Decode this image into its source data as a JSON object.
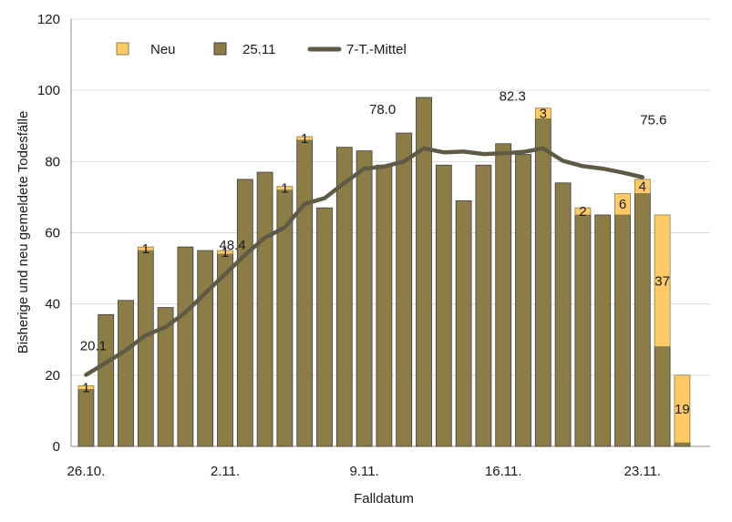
{
  "chart_data": {
    "type": "bar",
    "stacked": true,
    "xlabel": "Falldatum",
    "ylabel": "Bisherige und neu gemeldete Todesfälle",
    "ylim": [
      0,
      120
    ],
    "yticks": [
      0,
      20,
      40,
      60,
      80,
      100,
      120
    ],
    "grid": true,
    "legend_position": "top",
    "colors": {
      "old": "#8B7D45",
      "new": "#FFC966",
      "line": "#5E5A45"
    },
    "x_tick_labels": [
      {
        "index": 0,
        "label": "26.10."
      },
      {
        "index": 7,
        "label": "2.11."
      },
      {
        "index": 14,
        "label": "9.11."
      },
      {
        "index": 21,
        "label": "16.11."
      },
      {
        "index": 28,
        "label": "23.11."
      }
    ],
    "categories": [
      "26.10.",
      "27.10.",
      "28.10.",
      "29.10.",
      "30.10.",
      "31.10.",
      "1.11.",
      "2.11.",
      "3.11.",
      "4.11.",
      "5.11.",
      "6.11.",
      "7.11.",
      "8.11.",
      "9.11.",
      "10.11.",
      "11.11.",
      "12.11.",
      "13.11.",
      "14.11.",
      "15.11.",
      "16.11.",
      "17.11.",
      "18.11.",
      "19.11.",
      "20.11.",
      "21.11.",
      "22.11.",
      "23.11.",
      "24.11.",
      "25.11."
    ],
    "series": [
      {
        "name": "25.11",
        "values": [
          16,
          37,
          41,
          55,
          39,
          56,
          55,
          54,
          75,
          77,
          72,
          86,
          67,
          84,
          83,
          79,
          88,
          98,
          79,
          69,
          79,
          85,
          82,
          92,
          74,
          65,
          65,
          65,
          71,
          28,
          1
        ]
      },
      {
        "name": "Neu",
        "values": [
          1,
          0,
          0,
          1,
          0,
          0,
          0,
          1,
          0,
          0,
          1,
          1,
          0,
          0,
          0,
          0,
          0,
          0,
          0,
          0,
          0,
          0,
          0,
          3,
          0,
          2,
          0,
          6,
          4,
          37,
          19
        ]
      },
      {
        "name": "7-T.-Mittel",
        "type": "line",
        "values": [
          20.1,
          23.5,
          27.0,
          31.2,
          33.5,
          37.6,
          43.0,
          48.4,
          53.8,
          58.6,
          61.5,
          68.1,
          69.7,
          74.0,
          78.0,
          78.6,
          80.0,
          83.7,
          82.6,
          82.8,
          82.1,
          82.3,
          82.7,
          83.7,
          80.2,
          78.7,
          78.0,
          76.9,
          75.6,
          null,
          null
        ]
      }
    ],
    "annotations": [
      {
        "index": 0,
        "text": "20.1"
      },
      {
        "index": 7,
        "text": "48.4"
      },
      {
        "index": 14,
        "text": "78.0"
      },
      {
        "index": 21,
        "text": "82.3"
      },
      {
        "index": 28,
        "text": "75.6"
      }
    ]
  }
}
